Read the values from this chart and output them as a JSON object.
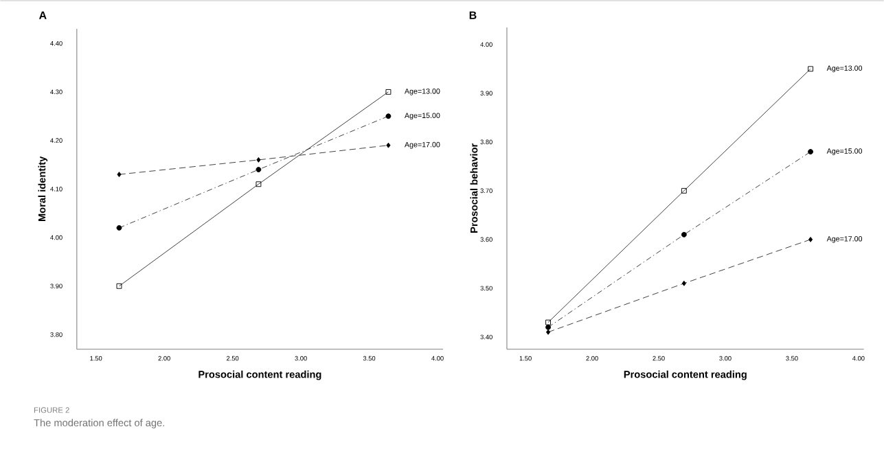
{
  "chart_data": [
    {
      "type": "line",
      "title": "A",
      "xlabel": "Prosocial content reading",
      "ylabel": "Moral identity",
      "x": [
        1.67,
        2.69,
        3.64
      ],
      "series": [
        {
          "name": "Age=13.00",
          "color": "#333333",
          "values": [
            3.9,
            4.11,
            4.3
          ],
          "marker": "square",
          "line_style": "solid"
        },
        {
          "name": "Age=15.00",
          "color": "#333333",
          "values": [
            4.02,
            4.14,
            4.25
          ],
          "marker": "circle",
          "line_style": "dashdot"
        },
        {
          "name": "Age=17.00",
          "color": "#333333",
          "values": [
            4.13,
            4.16,
            4.19
          ],
          "marker": "diamond",
          "line_style": "dashed"
        }
      ],
      "xlim": [
        1.36,
        4.04
      ],
      "ylim": [
        3.77,
        4.43
      ],
      "xticks": [
        {
          "value": 1.5,
          "label": "1.50"
        },
        {
          "value": 2.0,
          "label": "2.00"
        },
        {
          "value": 2.5,
          "label": "2.50"
        },
        {
          "value": 3.0,
          "label": "3.00"
        },
        {
          "value": 3.5,
          "label": "3.50"
        },
        {
          "value": 4.0,
          "label": "4.00"
        }
      ],
      "yticks": [
        {
          "value": 3.8,
          "label": "3.80"
        },
        {
          "value": 3.9,
          "label": "3.90"
        },
        {
          "value": 4.0,
          "label": "4.00"
        },
        {
          "value": 4.1,
          "label": "4.10"
        },
        {
          "value": 4.2,
          "label": "4.20"
        },
        {
          "value": 4.3,
          "label": "4.30"
        },
        {
          "value": 4.4,
          "label": "4.40"
        }
      ],
      "grid": false,
      "legend": false,
      "annotations": [
        "FIGURE 2",
        "The moderation effect of age."
      ]
    },
    {
      "type": "line",
      "title": "B",
      "xlabel": "Prosocial content reading",
      "ylabel": "Prosocial behavior",
      "x": [
        1.67,
        2.69,
        3.64
      ],
      "series": [
        {
          "name": "Age=13.00",
          "color": "#333333",
          "values": [
            3.43,
            3.7,
            3.95
          ],
          "marker": "square",
          "line_style": "solid"
        },
        {
          "name": "Age=15.00",
          "color": "#333333",
          "values": [
            3.42,
            3.61,
            3.78
          ],
          "marker": "circle",
          "line_style": "dashdot"
        },
        {
          "name": "Age=17.00",
          "color": "#333333",
          "values": [
            3.41,
            3.51,
            3.6
          ],
          "marker": "diamond",
          "line_style": "dashed"
        }
      ],
      "xlim": [
        1.36,
        4.04
      ],
      "ylim": [
        3.375,
        4.035
      ],
      "xticks": [
        {
          "value": 1.5,
          "label": "1.50"
        },
        {
          "value": 2.0,
          "label": "2.00"
        },
        {
          "value": 2.5,
          "label": "2.50"
        },
        {
          "value": 3.0,
          "label": "3.00"
        },
        {
          "value": 3.5,
          "label": "3.50"
        },
        {
          "value": 4.0,
          "label": "4.00"
        }
      ],
      "yticks": [
        {
          "value": 3.4,
          "label": "3.40"
        },
        {
          "value": 3.5,
          "label": "3.50"
        },
        {
          "value": 3.6,
          "label": "3.60"
        },
        {
          "value": 3.7,
          "label": "3.70"
        },
        {
          "value": 3.8,
          "label": "3.80"
        },
        {
          "value": 3.9,
          "label": "3.90"
        },
        {
          "value": 4.0,
          "label": "4.00"
        }
      ],
      "grid": false,
      "legend": false
    }
  ]
}
